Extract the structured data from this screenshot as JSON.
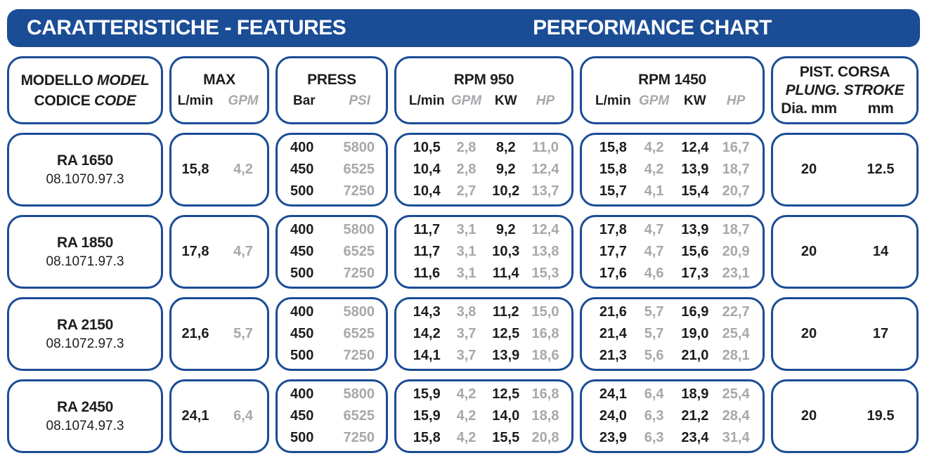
{
  "banner": {
    "left_title": "CARATTERISTICHE - FEATURES",
    "right_title": "PERFORMANCE CHART"
  },
  "colors": {
    "brand_blue": "#1b4c96",
    "muted_gray": "#a6a8ab",
    "text_ink": "#1d1d1b"
  },
  "header": {
    "model": {
      "it1": "MODELLO",
      "en1": "MODEL",
      "it2": "CODICE",
      "en2": "CODE"
    },
    "max": {
      "title": "MAX",
      "units": [
        "L/min",
        "GPM"
      ]
    },
    "press": {
      "title": "PRESS",
      "units": [
        "Bar",
        "PSI"
      ]
    },
    "rpm950": {
      "title": "RPM 950",
      "units": [
        "L/min",
        "GPM",
        "KW",
        "HP"
      ]
    },
    "rpm1450": {
      "title": "RPM 1450",
      "units": [
        "L/min",
        "GPM",
        "KW",
        "HP"
      ]
    },
    "piston": {
      "title_it": "PIST. CORSA",
      "title_en": "PLUNG. STROKE",
      "units": [
        "Dia. mm",
        "mm"
      ]
    }
  },
  "rows": [
    {
      "model": "RA 1650",
      "code": "08.1070.97.3",
      "max": [
        "15,8",
        "4,2"
      ],
      "press": [
        [
          "400",
          "5800"
        ],
        [
          "450",
          "6525"
        ],
        [
          "500",
          "7250"
        ]
      ],
      "rpm950": [
        [
          "10,5",
          "2,8",
          "8,2",
          "11,0"
        ],
        [
          "10,4",
          "2,8",
          "9,2",
          "12,4"
        ],
        [
          "10,4",
          "2,7",
          "10,2",
          "13,7"
        ]
      ],
      "rpm1450": [
        [
          "15,8",
          "4,2",
          "12,4",
          "16,7"
        ],
        [
          "15,8",
          "4,2",
          "13,9",
          "18,7"
        ],
        [
          "15,7",
          "4,1",
          "15,4",
          "20,7"
        ]
      ],
      "piston": [
        "20",
        "12.5"
      ]
    },
    {
      "model": "RA 1850",
      "code": "08.1071.97.3",
      "max": [
        "17,8",
        "4,7"
      ],
      "press": [
        [
          "400",
          "5800"
        ],
        [
          "450",
          "6525"
        ],
        [
          "500",
          "7250"
        ]
      ],
      "rpm950": [
        [
          "11,7",
          "3,1",
          "9,2",
          "12,4"
        ],
        [
          "11,7",
          "3,1",
          "10,3",
          "13,8"
        ],
        [
          "11,6",
          "3,1",
          "11,4",
          "15,3"
        ]
      ],
      "rpm1450": [
        [
          "17,8",
          "4,7",
          "13,9",
          "18,7"
        ],
        [
          "17,7",
          "4,7",
          "15,6",
          "20,9"
        ],
        [
          "17,6",
          "4,6",
          "17,3",
          "23,1"
        ]
      ],
      "piston": [
        "20",
        "14"
      ]
    },
    {
      "model": "RA 2150",
      "code": "08.1072.97.3",
      "max": [
        "21,6",
        "5,7"
      ],
      "press": [
        [
          "400",
          "5800"
        ],
        [
          "450",
          "6525"
        ],
        [
          "500",
          "7250"
        ]
      ],
      "rpm950": [
        [
          "14,3",
          "3,8",
          "11,2",
          "15,0"
        ],
        [
          "14,2",
          "3,7",
          "12,5",
          "16,8"
        ],
        [
          "14,1",
          "3,7",
          "13,9",
          "18,6"
        ]
      ],
      "rpm1450": [
        [
          "21,6",
          "5,7",
          "16,9",
          "22,7"
        ],
        [
          "21,4",
          "5,7",
          "19,0",
          "25,4"
        ],
        [
          "21,3",
          "5,6",
          "21,0",
          "28,1"
        ]
      ],
      "piston": [
        "20",
        "17"
      ]
    },
    {
      "model": "RA 2450",
      "code": "08.1074.97.3",
      "max": [
        "24,1",
        "6,4"
      ],
      "press": [
        [
          "400",
          "5800"
        ],
        [
          "450",
          "6525"
        ],
        [
          "500",
          "7250"
        ]
      ],
      "rpm950": [
        [
          "15,9",
          "4,2",
          "12,5",
          "16,8"
        ],
        [
          "15,9",
          "4,2",
          "14,0",
          "18,8"
        ],
        [
          "15,8",
          "4,2",
          "15,5",
          "20,8"
        ]
      ],
      "rpm1450": [
        [
          "24,1",
          "6,4",
          "18,9",
          "25,4"
        ],
        [
          "24,0",
          "6,3",
          "21,2",
          "28,4"
        ],
        [
          "23,9",
          "6,3",
          "23,4",
          "31,4"
        ]
      ],
      "piston": [
        "20",
        "19.5"
      ]
    }
  ]
}
